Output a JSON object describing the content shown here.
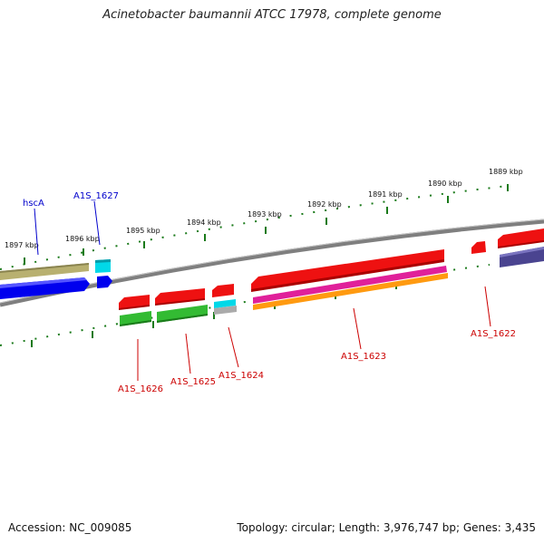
{
  "title": "Acinetobacter baumannii ATCC 17978, complete genome",
  "footer": {
    "accession": "Accession: NC_009085",
    "summary": "Topology: circular; Length: 3,976,747 bp; Genes: 3,435"
  },
  "colors": {
    "backbone": "#7f7f7f",
    "ticks": "#1a7a1a",
    "label_forward": "#0000cc",
    "label_reverse": "#cc0000",
    "red": "#ee1111",
    "green": "#33bb33",
    "blue": "#0000ee",
    "cyan": "#00d8e8",
    "olive": "#b8b070",
    "magenta": "#e0209a",
    "orange": "#ff9a10",
    "navy": "#4a4490",
    "gray": "#aaaaaa"
  },
  "scale": {
    "unit": "kbp",
    "ticks": [
      {
        "kbp": 1897,
        "label": "1897 kbp"
      },
      {
        "kbp": 1896,
        "label": "1896 kbp"
      },
      {
        "kbp": 1895,
        "label": "1895 kbp"
      },
      {
        "kbp": 1894,
        "label": "1894 kbp"
      },
      {
        "kbp": 1893,
        "label": "1893 kbp"
      },
      {
        "kbp": 1892,
        "label": "1892 kbp"
      },
      {
        "kbp": 1891,
        "label": "1891 kbp"
      },
      {
        "kbp": 1890,
        "label": "1890 kbp"
      },
      {
        "kbp": 1889,
        "label": "1889 kbp"
      }
    ]
  },
  "gene_labels": [
    {
      "name": "hscA",
      "strand": "forward"
    },
    {
      "name": "A1S_1627",
      "strand": "forward"
    },
    {
      "name": "A1S_1626",
      "strand": "reverse"
    },
    {
      "name": "A1S_1625",
      "strand": "reverse"
    },
    {
      "name": "A1S_1624",
      "strand": "reverse"
    },
    {
      "name": "A1S_1623",
      "strand": "reverse"
    },
    {
      "name": "A1S_1622",
      "strand": "reverse"
    }
  ]
}
